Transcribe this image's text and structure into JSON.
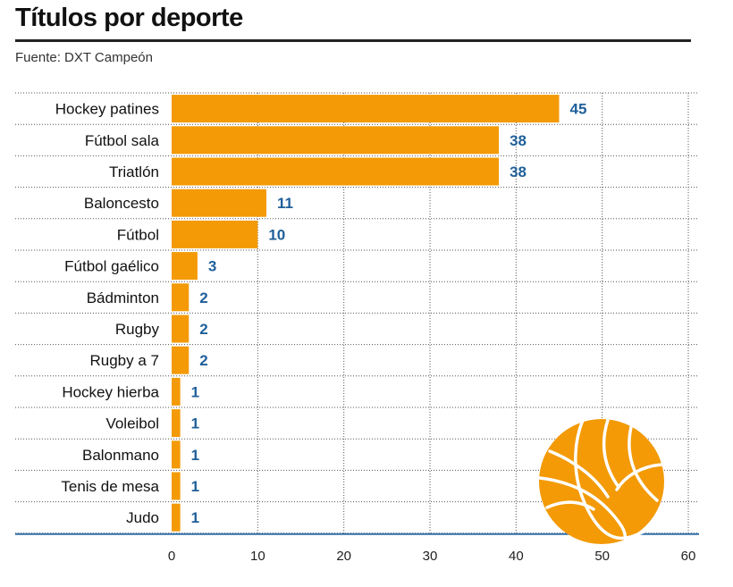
{
  "title": "Títulos por deporte",
  "source": "Fuente: DXT Campeón",
  "colors": {
    "bar": "#F39A06",
    "value_label": "#1F5F99",
    "axis": "#2F6EA8",
    "grid": "#555555",
    "ball": "#F39A06",
    "ball_seams": "#ffffff"
  },
  "decoration": {
    "icon": "basketball-icon"
  },
  "chart_data": {
    "type": "bar",
    "orientation": "horizontal",
    "title": "Títulos por deporte",
    "xlabel": "",
    "ylabel": "",
    "categories": [
      "Hockey patines",
      "Fútbol sala",
      "Triatlón",
      "Baloncesto",
      "Fútbol",
      "Fútbol gaélico",
      "Bádminton",
      "Rugby",
      "Rugby a 7",
      "Hockey hierba",
      "Voleibol",
      "Balonmano",
      "Tenis de mesa",
      "Judo"
    ],
    "values": [
      45,
      38,
      38,
      11,
      10,
      3,
      2,
      2,
      2,
      1,
      1,
      1,
      1,
      1
    ],
    "xlim": [
      0,
      60
    ],
    "xticks": [
      0,
      10,
      20,
      30,
      40,
      50,
      60
    ],
    "grid": true,
    "legend": "none"
  }
}
